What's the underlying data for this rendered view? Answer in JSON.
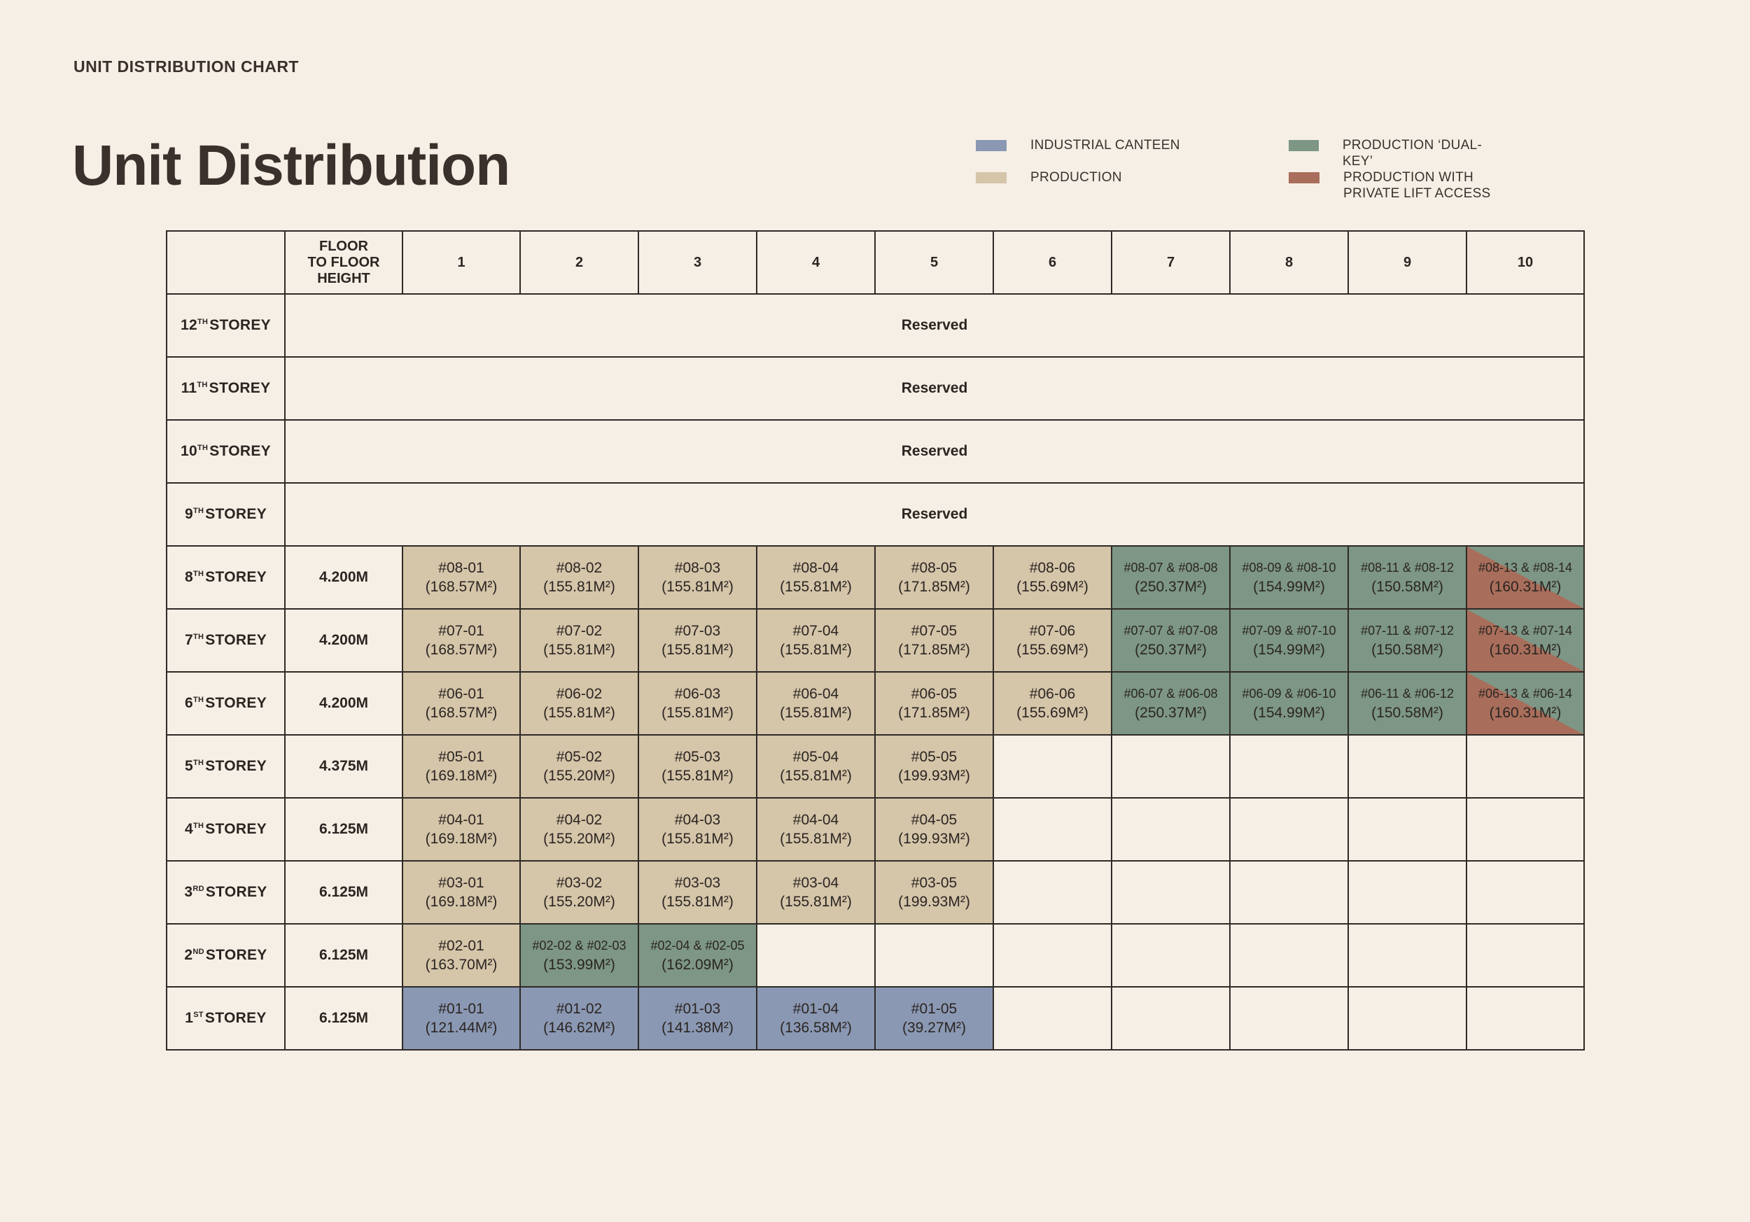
{
  "header": {
    "eyebrow": "UNIT DISTRIBUTION CHART",
    "title": "Unit Distribution"
  },
  "legend": [
    {
      "label": "INDUSTRIAL CANTEEN",
      "color": "#8a98b3",
      "key": "canteen"
    },
    {
      "label": "PRODUCTION ‘DUAL-KEY’",
      "color": "#7d9685",
      "key": "dual"
    },
    {
      "label": "PRODUCTION",
      "color": "#d5c5a9",
      "key": "prod"
    },
    {
      "label": "PRODUCTION WITH\nPRIVATE LIFT ACCESS",
      "color": "#a96e5b",
      "key": "lift"
    }
  ],
  "table": {
    "height_header": "FLOOR\nTO FLOOR\nHEIGHT",
    "columns": [
      "1",
      "2",
      "3",
      "4",
      "5",
      "6",
      "7",
      "8",
      "9",
      "10"
    ],
    "rows": [
      {
        "storey": "12",
        "suffix": "TH",
        "storey_word": "STOREY",
        "reserved": "Reserved"
      },
      {
        "storey": "11",
        "suffix": "TH",
        "storey_word": "STOREY",
        "reserved": "Reserved"
      },
      {
        "storey": "10",
        "suffix": "TH",
        "storey_word": "STOREY",
        "reserved": "Reserved"
      },
      {
        "storey": "9",
        "suffix": "TH",
        "storey_word": "STOREY",
        "reserved": "Reserved"
      },
      {
        "storey": "8",
        "suffix": "TH",
        "storey_word": "STOREY",
        "height": "4.200M",
        "cells": [
          {
            "code": "#08-01",
            "area": "(168.57M²)",
            "type": "prod"
          },
          {
            "code": "#08-02",
            "area": "(155.81M²)",
            "type": "prod"
          },
          {
            "code": "#08-03",
            "area": "(155.81M²)",
            "type": "prod"
          },
          {
            "code": "#08-04",
            "area": "(155.81M²)",
            "type": "prod"
          },
          {
            "code": "#08-05",
            "area": "(171.85M²)",
            "type": "prod"
          },
          {
            "code": "#08-06",
            "area": "(155.69M²)",
            "type": "prod"
          },
          {
            "code": "#08-07 & #08-08",
            "area": "(250.37M²)",
            "type": "dual"
          },
          {
            "code": "#08-09 & #08-10",
            "area": "(154.99M²)",
            "type": "dual"
          },
          {
            "code": "#08-11 & #08-12",
            "area": "(150.58M²)",
            "type": "dual"
          },
          {
            "code": "#08-13 & #08-14",
            "area": "(160.31M²)",
            "type": "lift"
          }
        ]
      },
      {
        "storey": "7",
        "suffix": "TH",
        "storey_word": "STOREY",
        "height": "4.200M",
        "cells": [
          {
            "code": "#07-01",
            "area": "(168.57M²)",
            "type": "prod"
          },
          {
            "code": "#07-02",
            "area": "(155.81M²)",
            "type": "prod"
          },
          {
            "code": "#07-03",
            "area": "(155.81M²)",
            "type": "prod"
          },
          {
            "code": "#07-04",
            "area": "(155.81M²)",
            "type": "prod"
          },
          {
            "code": "#07-05",
            "area": "(171.85M²)",
            "type": "prod"
          },
          {
            "code": "#07-06",
            "area": "(155.69M²)",
            "type": "prod"
          },
          {
            "code": "#07-07 & #07-08",
            "area": "(250.37M²)",
            "type": "dual"
          },
          {
            "code": "#07-09 & #07-10",
            "area": "(154.99M²)",
            "type": "dual"
          },
          {
            "code": "#07-11 & #07-12",
            "area": "(150.58M²)",
            "type": "dual"
          },
          {
            "code": "#07-13 & #07-14",
            "area": "(160.31M²)",
            "type": "lift"
          }
        ]
      },
      {
        "storey": "6",
        "suffix": "TH",
        "storey_word": "STOREY",
        "height": "4.200M",
        "cells": [
          {
            "code": "#06-01",
            "area": "(168.57M²)",
            "type": "prod"
          },
          {
            "code": "#06-02",
            "area": "(155.81M²)",
            "type": "prod"
          },
          {
            "code": "#06-03",
            "area": "(155.81M²)",
            "type": "prod"
          },
          {
            "code": "#06-04",
            "area": "(155.81M²)",
            "type": "prod"
          },
          {
            "code": "#06-05",
            "area": "(171.85M²)",
            "type": "prod"
          },
          {
            "code": "#06-06",
            "area": "(155.69M²)",
            "type": "prod"
          },
          {
            "code": "#06-07 & #06-08",
            "area": "(250.37M²)",
            "type": "dual"
          },
          {
            "code": "#06-09 & #06-10",
            "area": "(154.99M²)",
            "type": "dual"
          },
          {
            "code": "#06-11 & #06-12",
            "area": "(150.58M²)",
            "type": "dual"
          },
          {
            "code": "#06-13 & #06-14",
            "area": "(160.31M²)",
            "type": "lift"
          }
        ]
      },
      {
        "storey": "5",
        "suffix": "TH",
        "storey_word": "STOREY",
        "height": "4.375M",
        "cells": [
          {
            "code": "#05-01",
            "area": "(169.18M²)",
            "type": "prod"
          },
          {
            "code": "#05-02",
            "area": "(155.20M²)",
            "type": "prod"
          },
          {
            "code": "#05-03",
            "area": "(155.81M²)",
            "type": "prod"
          },
          {
            "code": "#05-04",
            "area": "(155.81M²)",
            "type": "prod"
          },
          {
            "code": "#05-05",
            "area": "(199.93M²)",
            "type": "prod"
          },
          {},
          {},
          {},
          {},
          {}
        ]
      },
      {
        "storey": "4",
        "suffix": "TH",
        "storey_word": "STOREY",
        "height": "6.125M",
        "cells": [
          {
            "code": "#04-01",
            "area": "(169.18M²)",
            "type": "prod"
          },
          {
            "code": "#04-02",
            "area": "(155.20M²)",
            "type": "prod"
          },
          {
            "code": "#04-03",
            "area": "(155.81M²)",
            "type": "prod"
          },
          {
            "code": "#04-04",
            "area": "(155.81M²)",
            "type": "prod"
          },
          {
            "code": "#04-05",
            "area": "(199.93M²)",
            "type": "prod"
          },
          {},
          {},
          {},
          {},
          {}
        ]
      },
      {
        "storey": "3",
        "suffix": "RD",
        "storey_word": "STOREY",
        "height": "6.125M",
        "cells": [
          {
            "code": "#03-01",
            "area": "(169.18M²)",
            "type": "prod"
          },
          {
            "code": "#03-02",
            "area": "(155.20M²)",
            "type": "prod"
          },
          {
            "code": "#03-03",
            "area": "(155.81M²)",
            "type": "prod"
          },
          {
            "code": "#03-04",
            "area": "(155.81M²)",
            "type": "prod"
          },
          {
            "code": "#03-05",
            "area": "(199.93M²)",
            "type": "prod"
          },
          {},
          {},
          {},
          {},
          {}
        ]
      },
      {
        "storey": "2",
        "suffix": "ND",
        "storey_word": "STOREY",
        "height": "6.125M",
        "cells": [
          {
            "code": "#02-01",
            "area": "(163.70M²)",
            "type": "prod"
          },
          {
            "code": "#02-02 & #02-03",
            "area": "(153.99M²)",
            "type": "dual"
          },
          {
            "code": "#02-04 & #02-05",
            "area": "(162.09M²)",
            "type": "dual"
          },
          {},
          {},
          {},
          {},
          {},
          {},
          {}
        ]
      },
      {
        "storey": "1",
        "suffix": "ST",
        "storey_word": "STOREY",
        "height": "6.125M",
        "cells": [
          {
            "code": "#01-01",
            "area": "(121.44M²)",
            "type": "canteen"
          },
          {
            "code": "#01-02",
            "area": "(146.62M²)",
            "type": "canteen"
          },
          {
            "code": "#01-03",
            "area": "(141.38M²)",
            "type": "canteen"
          },
          {
            "code": "#01-04",
            "area": "(136.58M²)",
            "type": "canteen"
          },
          {
            "code": "#01-05",
            "area": "(39.27M²)",
            "type": "canteen"
          },
          {},
          {},
          {},
          {},
          {}
        ]
      }
    ]
  }
}
